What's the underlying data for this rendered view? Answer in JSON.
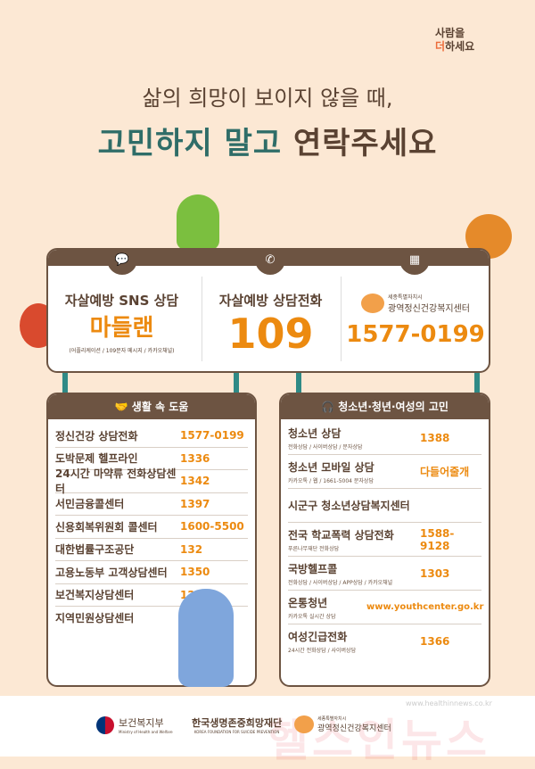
{
  "brand": {
    "line1": "사람을",
    "line2a": "더",
    "line2b": "하세요"
  },
  "headline": {
    "sub": "삶의 희망이 보이지 않을 때,",
    "main_a": "고민하지 말고",
    "main_b": "연락주세요"
  },
  "top": {
    "sns": {
      "title": "자살예방 SNS 상담",
      "name": "마들랜",
      "note": "(어플리케이션 / 109문자 메시지 / 카카오채널)",
      "icon": "chat-icon"
    },
    "phone": {
      "title": "자살예방 상담전화",
      "number": "109",
      "icon": "phone-icon"
    },
    "center": {
      "org_small": "세종특별자치시",
      "org": "광역정신건강복지센터",
      "number": "1577-0199",
      "icon": "building-icon"
    }
  },
  "left": {
    "header": "생활 속 도움",
    "items": [
      {
        "name": "정신건강 상담전화",
        "number": "1577-0199"
      },
      {
        "name": "도박문제 헬프라인",
        "number": "1336"
      },
      {
        "name": "24시간 마약류 전화상담센터",
        "number": "1342"
      },
      {
        "name": "서민금융콜센터",
        "number": "1397"
      },
      {
        "name": "신용회복위원회 콜센터",
        "number": "1600-5500"
      },
      {
        "name": "대한법률구조공단",
        "number": "132"
      },
      {
        "name": "고용노동부 고객상담센터",
        "number": "1350"
      },
      {
        "name": "보건복지상담센터",
        "number": "129"
      },
      {
        "name": "지역민원상담센터",
        "number": "120"
      }
    ]
  },
  "right": {
    "header": "청소년·청년·여성의 고민",
    "items": [
      {
        "name": "청소년 상담",
        "note": "전화상담 / 사이버상담 / 문자상담",
        "number": "1388"
      },
      {
        "name": "청소년 모바일 상담",
        "note": "카카오톡 / 웹 / 1661-5004 문자상담",
        "number": "다들어줄개"
      },
      {
        "name": "시군구 청소년상담복지센터",
        "note": "",
        "number": ""
      },
      {
        "name": "전국 학교폭력 상담전화",
        "note": "푸른나무재단 전화상담",
        "number": "1588-9128"
      },
      {
        "name": "국방헬프콜",
        "note": "전화상담 / 사이버상담 / APP상담 / 카카오채널",
        "number": "1303"
      },
      {
        "name": "온통청년",
        "note": "카카오톡 실시간 상담",
        "number": "www.youthcenter.go.kr"
      },
      {
        "name": "여성긴급전화",
        "note": "24시간 전화상담 / 사이버상담",
        "number": "1366"
      }
    ]
  },
  "footer": {
    "mohw": "보건복지부",
    "mohw_en": "Ministry of Health and Welfare",
    "kfsp": "한국생명존중희망재단",
    "kfsp_en": "KOREA FOUNDATION FOR SUICIDE PREVENTION",
    "center_small": "세종특별자치시",
    "center": "광역정신건강복지센터",
    "watermark_url": "www.healthinnews.co.kr",
    "watermark": "헬스인뉴스"
  }
}
